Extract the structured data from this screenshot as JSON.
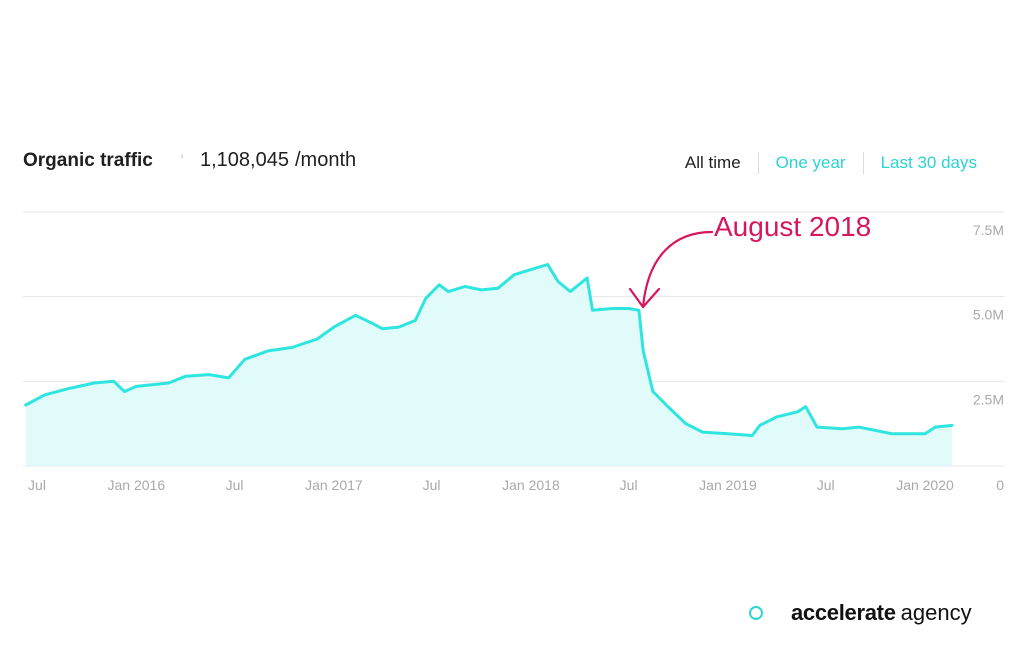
{
  "header": {
    "title": "Organic traffic",
    "info_icon": "info-icon",
    "metric_value": "1,108,045",
    "metric_unit": "/month",
    "ranges": [
      {
        "label": "All time",
        "active": true
      },
      {
        "label": "One year",
        "active": false
      },
      {
        "label": "Last 30 days",
        "active": false
      }
    ]
  },
  "brand": {
    "bold": "accelerate",
    "light": "agency",
    "icon": "circle-logo-icon"
  },
  "colors": {
    "line": "#2ee6df",
    "fill": "#e1fbfb",
    "grid": "#e6e6e6",
    "annotation": "#d6175f",
    "inactive_range": "#2bd4d4"
  },
  "chart_data": {
    "type": "area",
    "title": "",
    "xlabel": "",
    "ylabel": "",
    "ylim": [
      0,
      7500000
    ],
    "y_ticks": [
      {
        "value": 0,
        "label": "0"
      },
      {
        "value": 2500000,
        "label": "2.5M"
      },
      {
        "value": 5000000,
        "label": "5.0M"
      },
      {
        "value": 7500000,
        "label": "7.5M"
      }
    ],
    "x_ticks": [
      {
        "date": "2015-07-01",
        "label": "Jul"
      },
      {
        "date": "2016-01-01",
        "label": "Jan 2016"
      },
      {
        "date": "2016-07-01",
        "label": "Jul"
      },
      {
        "date": "2017-01-01",
        "label": "Jan 2017"
      },
      {
        "date": "2017-07-01",
        "label": "Jul"
      },
      {
        "date": "2018-01-01",
        "label": "Jan 2018"
      },
      {
        "date": "2018-07-01",
        "label": "Jul"
      },
      {
        "date": "2019-01-01",
        "label": "Jan 2019"
      },
      {
        "date": "2019-07-01",
        "label": "Jul"
      },
      {
        "date": "2020-01-01",
        "label": "Jan 2020"
      }
    ],
    "grid": true,
    "series": [
      {
        "values": [
          [
            "2015-06-10",
            1800000
          ],
          [
            "2015-07-15",
            2100000
          ],
          [
            "2015-09-01",
            2300000
          ],
          [
            "2015-10-15",
            2450000
          ],
          [
            "2015-11-20",
            2500000
          ],
          [
            "2015-12-10",
            2200000
          ],
          [
            "2016-01-01",
            2350000
          ],
          [
            "2016-03-01",
            2450000
          ],
          [
            "2016-04-01",
            2650000
          ],
          [
            "2016-05-15",
            2700000
          ],
          [
            "2016-06-20",
            2600000
          ],
          [
            "2016-07-20",
            3150000
          ],
          [
            "2016-09-01",
            3400000
          ],
          [
            "2016-10-15",
            3500000
          ],
          [
            "2016-12-01",
            3750000
          ],
          [
            "2017-01-01",
            4100000
          ],
          [
            "2017-02-10",
            4450000
          ],
          [
            "2017-03-15",
            4200000
          ],
          [
            "2017-04-01",
            4050000
          ],
          [
            "2017-05-01",
            4100000
          ],
          [
            "2017-06-01",
            4300000
          ],
          [
            "2017-06-20",
            4950000
          ],
          [
            "2017-07-15",
            5350000
          ],
          [
            "2017-08-01",
            5150000
          ],
          [
            "2017-09-01",
            5300000
          ],
          [
            "2017-10-01",
            5200000
          ],
          [
            "2017-11-01",
            5250000
          ],
          [
            "2017-12-01",
            5650000
          ],
          [
            "2018-01-01",
            5800000
          ],
          [
            "2018-02-01",
            5950000
          ],
          [
            "2018-02-20",
            5450000
          ],
          [
            "2018-03-15",
            5150000
          ],
          [
            "2018-04-15",
            5550000
          ],
          [
            "2018-04-25",
            4600000
          ],
          [
            "2018-06-01",
            4650000
          ],
          [
            "2018-07-01",
            4650000
          ],
          [
            "2018-07-20",
            4600000
          ],
          [
            "2018-07-28",
            3400000
          ],
          [
            "2018-08-15",
            2200000
          ],
          [
            "2018-09-15",
            1700000
          ],
          [
            "2018-10-15",
            1250000
          ],
          [
            "2018-11-15",
            1000000
          ],
          [
            "2019-01-01",
            950000
          ],
          [
            "2019-02-15",
            900000
          ],
          [
            "2019-03-01",
            1200000
          ],
          [
            "2019-04-01",
            1450000
          ],
          [
            "2019-05-10",
            1600000
          ],
          [
            "2019-05-25",
            1750000
          ],
          [
            "2019-06-15",
            1150000
          ],
          [
            "2019-08-01",
            1100000
          ],
          [
            "2019-09-01",
            1150000
          ],
          [
            "2019-11-01",
            950000
          ],
          [
            "2020-01-01",
            950000
          ],
          [
            "2020-01-20",
            1150000
          ],
          [
            "2020-02-20",
            1200000
          ]
        ]
      }
    ],
    "annotation": {
      "label": "August 2018",
      "date": "2018-08-01",
      "value": 4650000
    }
  }
}
